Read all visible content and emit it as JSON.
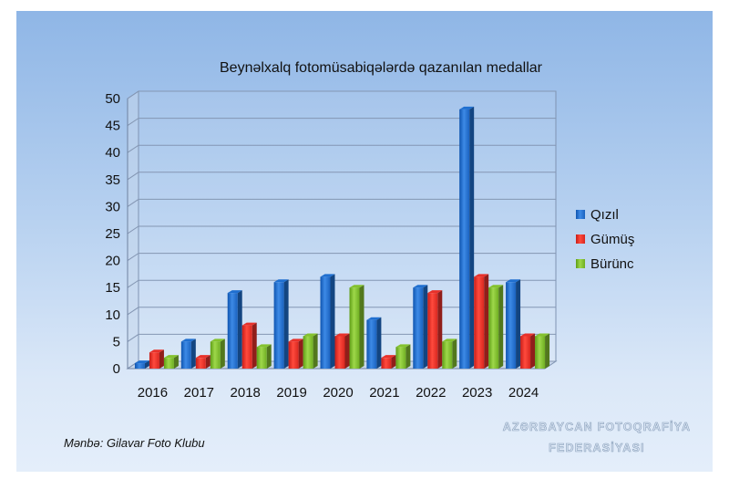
{
  "chart_data": {
    "type": "bar",
    "title": "Beynəlxalq fotomüsabiqələrdə qazanılan medallar",
    "categories": [
      "2016",
      "2017",
      "2018",
      "2019",
      "2020",
      "2021",
      "2022",
      "2023",
      "2024"
    ],
    "series": [
      {
        "name": "Qızıl",
        "color": "#1f6fd0",
        "values": [
          1,
          5,
          14,
          16,
          17,
          9,
          15,
          48,
          16
        ]
      },
      {
        "name": "Gümüş",
        "color": "#e8312a",
        "values": [
          3,
          2,
          8,
          5,
          6,
          2,
          14,
          17,
          6
        ]
      },
      {
        "name": "Bürünc",
        "color": "#84c22e",
        "values": [
          2,
          5,
          4,
          6,
          15,
          4,
          5,
          15,
          6
        ]
      }
    ],
    "ylim": [
      0,
      50
    ],
    "yticks": [
      0,
      5,
      10,
      15,
      20,
      25,
      30,
      35,
      40,
      45,
      50
    ],
    "grid": true,
    "legend_position": "right"
  },
  "source": "Mənbə: Gilavar Foto Klubu",
  "brand": {
    "line1": "AZƏRBAYCAN FOTOQRAFİYA",
    "line2": "FEDERASİYASI"
  }
}
